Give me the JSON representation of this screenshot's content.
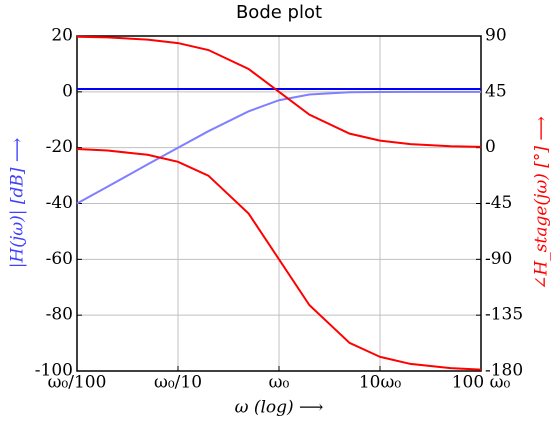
{
  "chart_data": {
    "type": "line",
    "title": "Bode plot",
    "x_label": "ω (log) ⟶",
    "y_label": "|H(jω)| [dB] ⟶",
    "y2_label": "∠H_stage(jω) [°] ⟶",
    "x": [
      0.01,
      0.02,
      0.05,
      0.1,
      0.2,
      0.5,
      1,
      2,
      5,
      10,
      20,
      50,
      100
    ],
    "xscale": "log",
    "grid": true,
    "xlim": [
      0.01,
      100
    ],
    "xticks": [
      {
        "value": 0.01,
        "label": "ω₀/100"
      },
      {
        "value": 0.1,
        "label": "ω₀/10"
      },
      {
        "value": 1,
        "label": "ω₀"
      },
      {
        "value": 10,
        "label": "10ω₀"
      },
      {
        "value": 100,
        "label": "100 ω₀"
      }
    ],
    "ylim": [
      -100,
      20
    ],
    "yticks": [
      -100,
      -80,
      -60,
      -40,
      -20,
      0,
      20
    ],
    "y2lim": [
      -180,
      90
    ],
    "y2ticks": [
      -180,
      -135,
      -90,
      -45,
      0,
      45,
      90
    ],
    "series": [
      {
        "color": "#0000ff",
        "axis": "y",
        "values": [
          1,
          1,
          1,
          1,
          1,
          1,
          1,
          1,
          1,
          1,
          1,
          1,
          1
        ]
      },
      {
        "color": "#7f7fff",
        "axis": "y",
        "values": [
          -40,
          -34,
          -26,
          -20.04,
          -14.1,
          -6.99,
          -3.01,
          -0.97,
          -0.17,
          -0.04,
          -0.01,
          0,
          0
        ]
      },
      {
        "color": "#ff0000",
        "axis": "y2",
        "values": [
          89.4,
          88.9,
          87.1,
          84.3,
          78.7,
          63.4,
          45,
          26.6,
          11.3,
          5.7,
          2.9,
          1.1,
          0.6
        ]
      },
      {
        "color": "#ff0000",
        "axis": "y2",
        "values": [
          -1.1,
          -2.3,
          -5.7,
          -11.4,
          -22.6,
          -53.1,
          -90,
          -126.9,
          -157.4,
          -168.6,
          -174.3,
          -177.7,
          -178.9
        ]
      }
    ]
  }
}
